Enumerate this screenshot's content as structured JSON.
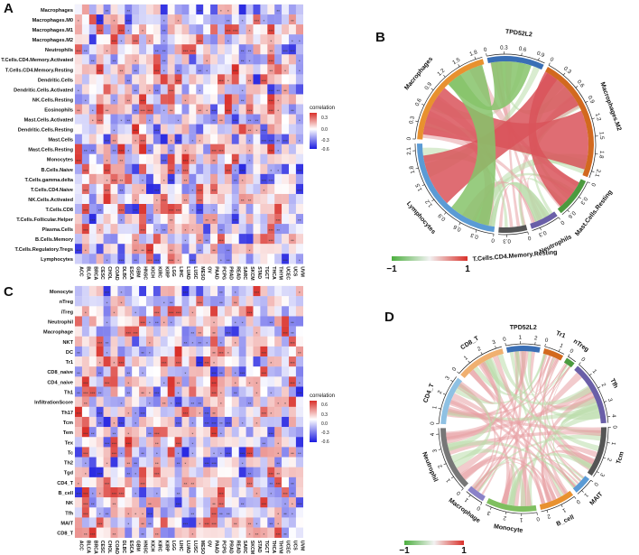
{
  "panels": {
    "A": {
      "letter": "A",
      "rows": [
        "Macrophages",
        "Macrophages.M0",
        "Macrophages.M1",
        "Macrophages.M2",
        "Neutrophils",
        "T.Cells.CD4.Memory.Activated",
        "T.Cells.CD4.Memory.Resting",
        "Dendritic.Cells",
        "Dendritic.Cells.Activated",
        "NK.Cells.Resting",
        "Eosinophils",
        "Mast.Cells.Activated",
        "Dendritic.Cells.Resting",
        "Mast.Cells",
        "Mast.Cells.Resting",
        "Monocytes",
        "B.Cells.Naive",
        "T.Cells.gamma.delta",
        "T.Cells.CD4.Naive",
        "NK.Cells.Activated",
        "T.Cells.CD8",
        "T.Cells.Follicular.Helper",
        "Plasma.Cells",
        "B.Cells.Memory",
        "T.Cells.Regulatory.Tregs",
        "Lymphocytes"
      ],
      "columns": [
        "ACC",
        "BLCA",
        "BRCA",
        "CESC",
        "CHOL",
        "COAD",
        "DLBC",
        "ESCA",
        "GBM",
        "HNSC",
        "KICH",
        "KIRC",
        "KIRP",
        "LGG",
        "LIHC",
        "LUAD",
        "LUSC",
        "MESO",
        "OV",
        "PAAD",
        "PCPG",
        "PRAD",
        "READ",
        "SARC",
        "SKCM",
        "STAD",
        "TGCT",
        "THCA",
        "THYM",
        "UCEC",
        "UCS",
        "UVM"
      ],
      "legend": {
        "title": "correlation",
        "ticks": [
          "0.3",
          "0.0",
          "-0.3",
          "-0.6"
        ]
      }
    },
    "B": {
      "letter": "B",
      "sectors": [
        {
          "name": "TPD52L2",
          "color": "#3a6fb5",
          "ticks": [
            "0",
            "0.3",
            "0.6",
            "0.9"
          ]
        },
        {
          "name": "Macrophages.M2",
          "color": "#d2691e",
          "ticks": [
            "0",
            "0.3",
            "0.6",
            "0.9",
            "1.2",
            "1.5",
            "1.8",
            "2.1"
          ]
        },
        {
          "name": "Mast.Cells.Resting",
          "color": "#4c9a3f",
          "ticks": [
            "0",
            "0.3",
            "0.6"
          ]
        },
        {
          "name": "Neutrophils",
          "color": "#6a5fa8",
          "ticks": [
            "0",
            "0.3"
          ]
        },
        {
          "name": "T.Cells.CD4.Memory.Resting",
          "color": "#555555",
          "ticks": [
            "0",
            "0.3"
          ]
        },
        {
          "name": "Lymphocytes",
          "color": "#5b9bd5",
          "ticks": [
            "0",
            "0.3",
            "0.6",
            "0.9",
            "1.2",
            "1.5",
            "1.8",
            "2.1"
          ]
        },
        {
          "name": "Macrophages",
          "color": "#e8912f",
          "ticks": [
            "0",
            "0.3",
            "0.6",
            "0.9",
            "1.2",
            "1.5",
            "1.8"
          ]
        }
      ],
      "colorbar": {
        "min": "−1",
        "max": "1"
      }
    },
    "C": {
      "letter": "C",
      "rows": [
        "Monocyte",
        "nTreg",
        "iTreg",
        "Neutrophil",
        "Macrophage",
        "NKT",
        "DC",
        "Tr1",
        "CD8_naive",
        "CD4_naive",
        "Th1",
        "InfiltrationScore",
        "Th17",
        "Tcm",
        "Tem",
        "Tex",
        "Tc",
        "Th2",
        "Tgd",
        "CD4_T",
        "B_cell",
        "NK",
        "Tfh",
        "MAIT",
        "CD8_T"
      ],
      "columns": [
        "ACC",
        "BLCA",
        "BRCA",
        "CESC",
        "CHOL",
        "COAD",
        "DLBC",
        "ESCA",
        "GBM",
        "HNSC",
        "KICH",
        "KIRC",
        "KIRP",
        "LGG",
        "LIHC",
        "LUAD",
        "LUSC",
        "MESO",
        "OV",
        "PAAD",
        "PCPG",
        "PRAD",
        "READ",
        "SARC",
        "SKCM",
        "STAD",
        "TGCT",
        "THCA",
        "THYM",
        "UCEC",
        "UCS",
        "UVM"
      ],
      "legend": {
        "title": "correlation",
        "ticks": [
          "0.6",
          "0.3",
          "0.0",
          "-0.3",
          "-0.6"
        ]
      }
    },
    "D": {
      "letter": "D",
      "sectors": [
        {
          "name": "TPD52L2",
          "color": "#3a6fb5",
          "ticks": [
            "0",
            "1",
            "2"
          ]
        },
        {
          "name": "Tr1",
          "color": "#d2691e",
          "ticks": [
            "0",
            "1"
          ]
        },
        {
          "name": "nTreg",
          "color": "#4c9a3f",
          "ticks": [
            "0"
          ]
        },
        {
          "name": "Tfh",
          "color": "#6a5fa8",
          "ticks": [
            "0",
            "1",
            "2",
            "3",
            "4"
          ]
        },
        {
          "name": "Tcm",
          "color": "#555555",
          "ticks": [
            "0",
            "1",
            "2",
            "3"
          ]
        },
        {
          "name": "MAIT",
          "color": "#5b9bd5",
          "ticks": [
            "0",
            "1"
          ]
        },
        {
          "name": "B_cell",
          "color": "#e8912f",
          "ticks": [
            "0",
            "1",
            "2"
          ]
        },
        {
          "name": "Monocyte",
          "color": "#7fbf5f",
          "ticks": [
            "0",
            "1",
            "2",
            "3"
          ]
        },
        {
          "name": "Macrophage",
          "color": "#8a82c8",
          "ticks": [
            "0",
            "1"
          ]
        },
        {
          "name": "Neutrophil",
          "color": "#777777",
          "ticks": [
            "0",
            "1",
            "2",
            "3",
            "4"
          ]
        },
        {
          "name": "CD4_T",
          "color": "#8fc1e3",
          "ticks": [
            "0",
            "1",
            "2",
            "3"
          ]
        },
        {
          "name": "CD8_T",
          "color": "#f0b070",
          "ticks": [
            "0",
            "1",
            "2",
            "3"
          ]
        }
      ],
      "colorbar": {
        "min": "−1",
        "max": "1"
      }
    }
  },
  "colors": {
    "positive": "#d9302a",
    "negative": "#1c1ce0",
    "neutral": "#ffffff",
    "chord_pos": "#d9545a",
    "chord_neg": "#7fbf5f"
  }
}
